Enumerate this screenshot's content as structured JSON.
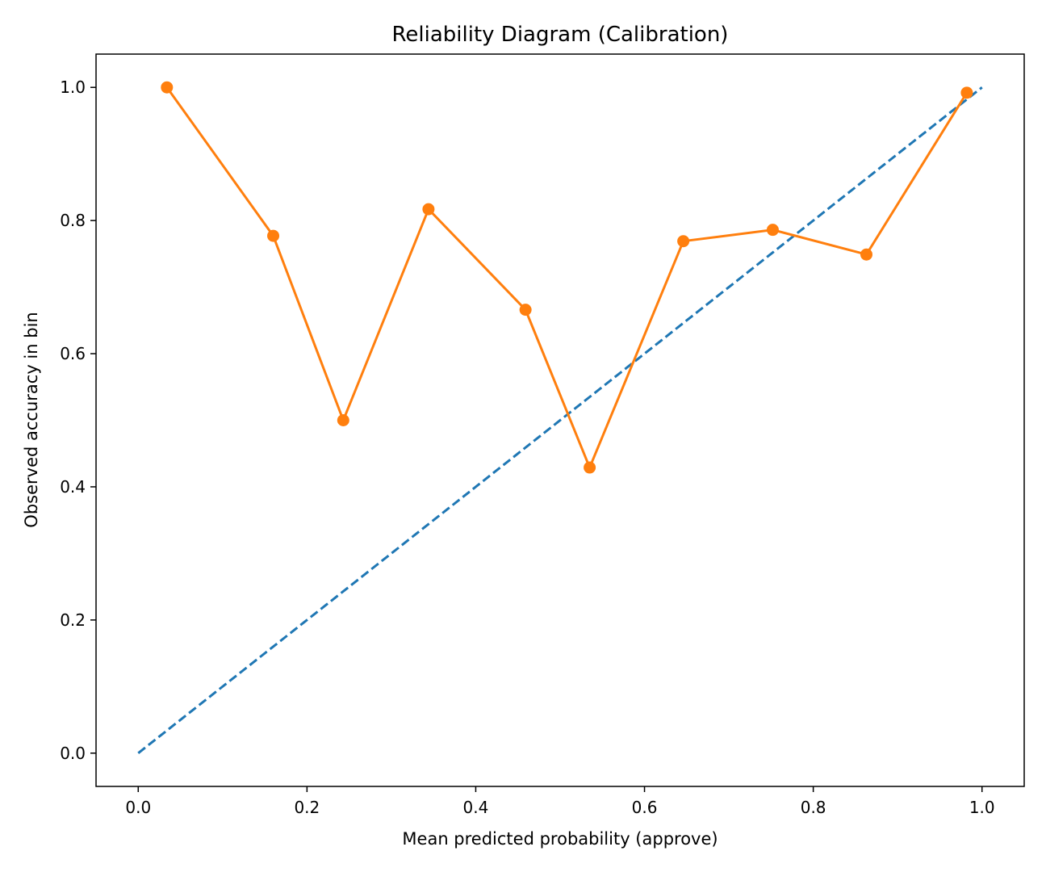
{
  "chart_data": {
    "type": "line",
    "title": "Reliability Diagram (Calibration)",
    "x_label": "Mean predicted probability (approve)",
    "y_label": "Observed accuracy in bin",
    "xlim": [
      -0.05,
      1.05
    ],
    "ylim": [
      -0.05,
      1.05
    ],
    "xticks": [
      {
        "value": 0,
        "label": "0.0"
      },
      0.2,
      0.4,
      0.6,
      0.8,
      {
        "value": 1,
        "label": "1.0"
      }
    ],
    "yticks": [
      {
        "value": 0,
        "label": "0.0"
      },
      0.2,
      0.4,
      0.6,
      0.8,
      {
        "value": 1,
        "label": "1.0"
      }
    ],
    "grid": false,
    "series": [
      {
        "color": "#1f77b4",
        "style": "dashed",
        "marker": false,
        "x": [
          0,
          1
        ],
        "values": [
          0,
          1
        ]
      },
      {
        "color": "#ff7f0e",
        "style": "solid",
        "marker": true,
        "x": [
          0.034,
          0.16,
          0.243,
          0.344,
          0.459,
          0.535,
          0.646,
          0.752,
          0.863,
          0.982
        ],
        "values": [
          1.0,
          0.777,
          0.5,
          0.817,
          0.666,
          0.429,
          0.769,
          0.786,
          0.749,
          0.992
        ]
      }
    ]
  }
}
